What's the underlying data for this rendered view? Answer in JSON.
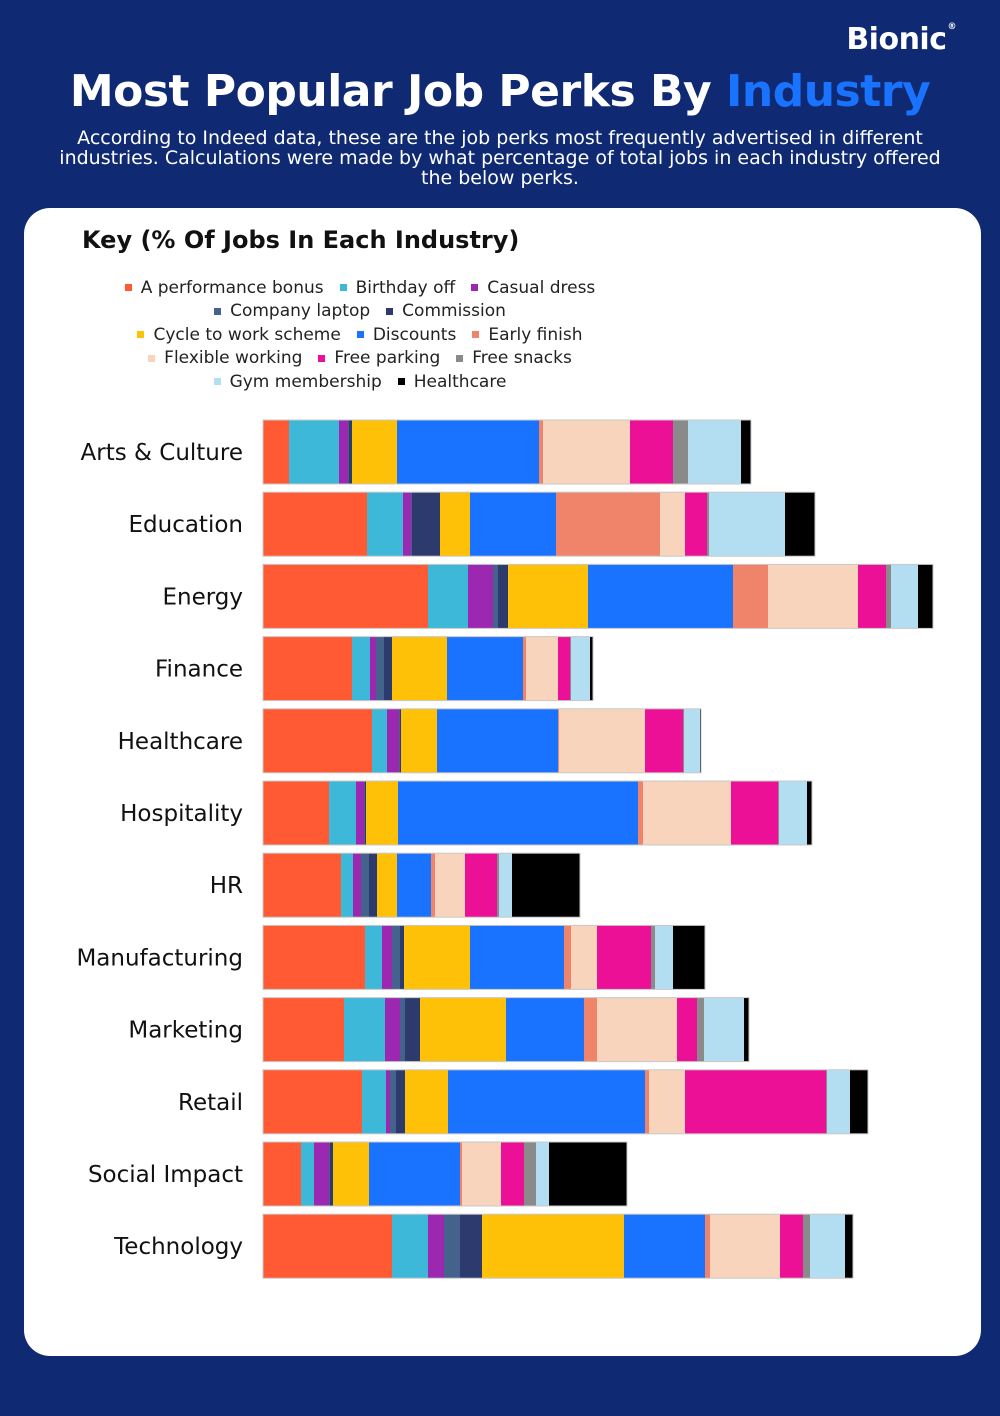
{
  "brand": {
    "logo_text": "Bionic",
    "logo_mark": "®"
  },
  "header": {
    "title_main": "Most Popular Job Perks By",
    "title_accent": "Industry",
    "subtitle": "According to Indeed data, these are the job perks most frequently advertised in different industries. Calculations were made by what percentage of total jobs in each industry offered the below perks."
  },
  "key_title": "Key (% Of Jobs In Each Industry)",
  "colors": {
    "background": "#0f2a72",
    "card": "#ffffff",
    "accent": "#1a73ff"
  },
  "chart_data": {
    "type": "bar",
    "orientation": "horizontal",
    "stacked": true,
    "legend_rows": [
      [
        0,
        1,
        2
      ],
      [
        3,
        4
      ],
      [
        5,
        6,
        7
      ],
      [
        8,
        9,
        10
      ],
      [
        11,
        12
      ]
    ],
    "series": [
      {
        "name": "A performance bonus",
        "color": "#ff5a33"
      },
      {
        "name": "Birthday off",
        "color": "#3db8d8"
      },
      {
        "name": "Casual dress",
        "color": "#9c27b0"
      },
      {
        "name": "Company laptop",
        "color": "#44638c"
      },
      {
        "name": "Commission",
        "color": "#2c3a6e"
      },
      {
        "name": "Cycle to work scheme",
        "color": "#ffc107"
      },
      {
        "name": "Discounts",
        "color": "#1a73ff"
      },
      {
        "name": "Early finish",
        "color": "#f0846a"
      },
      {
        "name": "Flexible working",
        "color": "#f7d4bb"
      },
      {
        "name": "Free parking",
        "color": "#ec1097"
      },
      {
        "name": "Free snacks",
        "color": "#8a8a8a"
      },
      {
        "name": "Gym membership",
        "color": "#b3def2"
      },
      {
        "name": "Healthcare",
        "color": "#000000"
      }
    ],
    "categories": [
      "Arts & Culture",
      "Education",
      "Energy",
      "Finance",
      "Healthcare",
      "Hospitality",
      "HR",
      "Manufacturing",
      "Marketing",
      "Retail",
      "Social Impact",
      "Technology"
    ],
    "values": [
      [
        2.6,
        5.0,
        0.9,
        0.1,
        0.3,
        4.5,
        14.2,
        0.4,
        8.7,
        4.3,
        1.5,
        5.3,
        1.0
      ],
      [
        10.4,
        3.6,
        0.8,
        0.1,
        2.8,
        3.0,
        8.6,
        10.4,
        2.5,
        2.2,
        0.2,
        7.6,
        3.0
      ],
      [
        16.5,
        4.0,
        2.5,
        0.5,
        1.0,
        8.0,
        14.5,
        3.5,
        9.0,
        2.8,
        0.5,
        2.7,
        1.5
      ],
      [
        8.9,
        1.8,
        0.6,
        0.8,
        0.8,
        5.5,
        7.6,
        0.3,
        3.2,
        1.2,
        0.1,
        1.9,
        0.3
      ],
      [
        10.9,
        1.5,
        1.2,
        0.1,
        0.1,
        3.6,
        12.1,
        0.1,
        8.6,
        3.8,
        0.1,
        1.6,
        0.1
      ],
      [
        6.6,
        2.7,
        0.8,
        0.1,
        0.1,
        3.2,
        24.0,
        0.5,
        8.8,
        4.7,
        0.1,
        2.8,
        0.5
      ],
      [
        7.8,
        1.2,
        0.8,
        0.8,
        0.8,
        2.0,
        3.4,
        0.4,
        3.0,
        3.2,
        0.2,
        1.3,
        6.8
      ],
      [
        10.2,
        1.7,
        1.0,
        0.8,
        0.4,
        6.6,
        9.4,
        0.7,
        2.6,
        5.4,
        0.4,
        1.8,
        3.2
      ],
      [
        8.1,
        4.1,
        1.5,
        0.5,
        1.5,
        8.6,
        7.8,
        1.3,
        8.0,
        2.0,
        0.7,
        4.0,
        0.5
      ],
      [
        9.9,
        2.4,
        0.4,
        0.6,
        0.9,
        4.3,
        19.7,
        0.4,
        3.6,
        14.1,
        0.1,
        2.3,
        1.8
      ],
      [
        3.8,
        1.3,
        1.5,
        0.1,
        0.3,
        3.6,
        9.1,
        0.2,
        3.9,
        2.3,
        1.2,
        1.3,
        7.8
      ],
      [
        12.9,
        3.6,
        1.6,
        1.6,
        2.2,
        14.2,
        8.1,
        0.5,
        7.0,
        2.3,
        0.7,
        3.5,
        0.8
      ]
    ]
  }
}
